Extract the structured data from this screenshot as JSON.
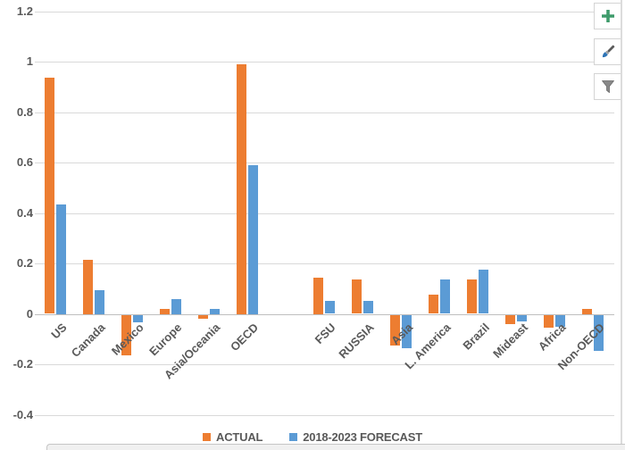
{
  "chart_data": {
    "type": "bar",
    "categories": [
      "US",
      "Canada",
      "Mexico",
      "Europe",
      "Asia/Oceania",
      "OECD",
      "FSU",
      "RUSSIA",
      "Asia",
      "L. America",
      "Brazil",
      "Mideast",
      "Africa",
      "Non-OECD"
    ],
    "series": [
      {
        "name": "ACTUAL",
        "color": "#ED7D31",
        "values": [
          0.935,
          0.215,
          -0.16,
          0.02,
          -0.015,
          0.99,
          0.145,
          0.135,
          -0.12,
          0.075,
          0.135,
          -0.035,
          -0.05,
          0.02
        ]
      },
      {
        "name": "2018-2023 FORECAST",
        "color": "#5B9BD5",
        "values": [
          0.435,
          0.095,
          -0.03,
          0.06,
          0.02,
          0.59,
          0.05,
          0.05,
          -0.13,
          0.135,
          0.175,
          -0.025,
          -0.045,
          -0.14
        ]
      }
    ],
    "y_ticks": [
      "1.2",
      "1",
      "0.8",
      "0.6",
      "0.4",
      "0.2",
      "0",
      "-0.2",
      "-0.4"
    ],
    "ylim": [
      -0.4,
      1.2
    ],
    "title": "",
    "xlabel": "",
    "ylabel": "",
    "grid": true,
    "legend_position": "bottom",
    "group_gap_after": "OECD",
    "gridline_color": "#D9D9D9",
    "axis_text_color": "#595959"
  },
  "toolbar": {
    "buttons": [
      {
        "name": "chart-elements",
        "icon": "plus-icon",
        "icon_color": "#3E9B6B"
      },
      {
        "name": "chart-styles",
        "icon": "paintbrush-icon",
        "icon_color": "#2E74B5"
      },
      {
        "name": "chart-filters",
        "icon": "funnel-icon",
        "icon_color": "#888888"
      }
    ]
  }
}
